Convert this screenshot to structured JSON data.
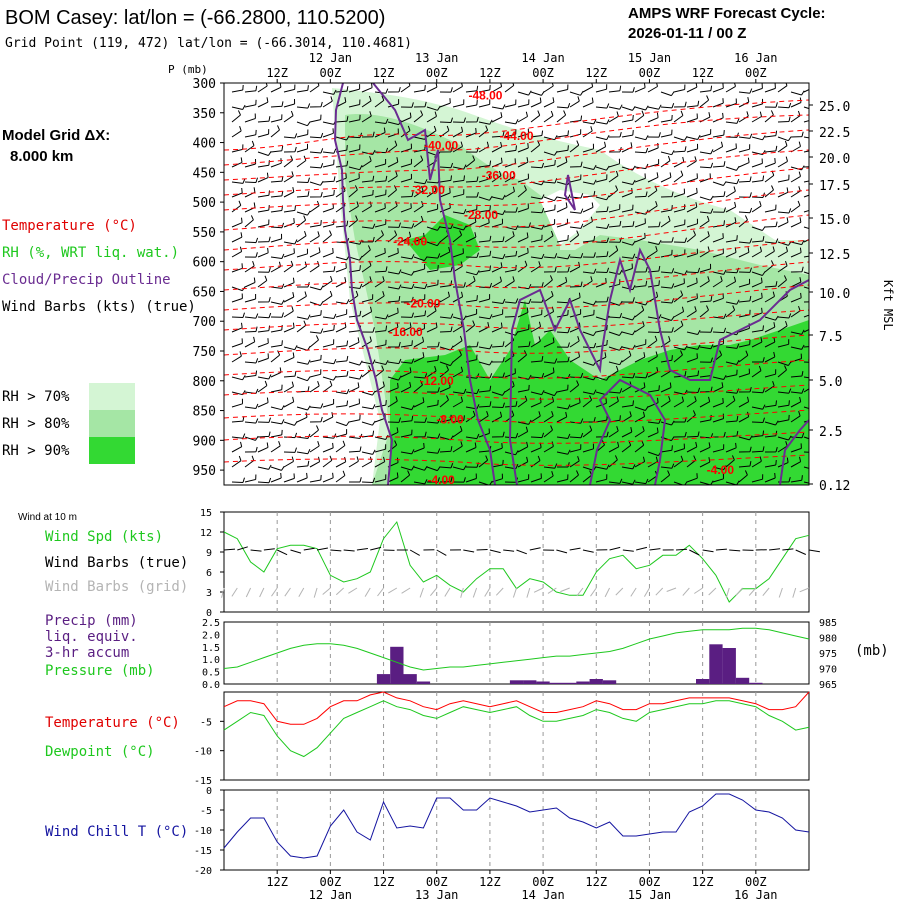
{
  "header": {
    "title": "BOM Casey:  lat/lon = (-66.2800, 110.5200)",
    "subtitle": "Grid Point (119, 472) lat/lon = (-66.3014, 110.4681)",
    "cycle_label": "AMPS WRF Forecast Cycle:",
    "cycle_value": "2026-01-11 / 00  Z"
  },
  "legend": {
    "grid_label": "Model Grid ΔX:",
    "grid_value": "8.000 km",
    "temperature": "Temperature (°C)",
    "rh": "RH (%, WRT liq. wat.)",
    "cloud": "Cloud/Precip Outline",
    "wind_barbs": "Wind Barbs (kts) (true)",
    "rh70": "RH > 70%",
    "rh80": "RH > 80%",
    "rh90": "RH > 90%",
    "wind10m": "Wind at 10 m",
    "wind_spd": "Wind Spd (kts)",
    "wind_barbs_true": "Wind Barbs (true)",
    "wind_barbs_grid": "Wind Barbs (grid)",
    "precip": "Precip (mm)",
    "precip2": "liq. equiv.",
    "precip3": "3-hr accum",
    "pressure": "Pressure (mb)",
    "temp2": "Temperature (°C)",
    "dewpoint": "Dewpoint (°C)",
    "windchill": "Wind Chill T (°C)",
    "mb_unit": "(mb)",
    "kft": "Kft MSL",
    "p_axis_label": "P (mb)"
  },
  "colors": {
    "temp": "#ff0000",
    "rh": "#1ec81e",
    "cloud": "#6a2c91",
    "rh70": "#d4f5d4",
    "rh80": "#a5e6a5",
    "rh90": "#33d933",
    "dew": "#1ec81e",
    "windchill": "#1414a0",
    "precip": "#5a1e82",
    "grid_barb": "#b4b4b4"
  },
  "chart_data": [
    {
      "type": "time-height cross-section",
      "x_hours": [
        0,
        132
      ],
      "time_ticks": [
        "12Z",
        "00Z",
        "12Z",
        "00Z",
        "12Z",
        "00Z",
        "12Z",
        "00Z",
        "12Z",
        "00Z"
      ],
      "tick_hours": [
        12,
        24,
        36,
        48,
        60,
        72,
        84,
        96,
        108,
        120
      ],
      "date_labels": [
        {
          "hour": 24,
          "label": "12 Jan"
        },
        {
          "hour": 48,
          "label": "13 Jan"
        },
        {
          "hour": 72,
          "label": "14 Jan"
        },
        {
          "hour": 96,
          "label": "15 Jan"
        },
        {
          "hour": 120,
          "label": "16 Jan"
        }
      ],
      "pressure_levels": [
        300,
        350,
        400,
        450,
        500,
        550,
        600,
        650,
        700,
        750,
        800,
        850,
        900,
        950
      ],
      "height_kft": [
        "25.0",
        "22.5",
        "20.0",
        "17.5",
        "15.0",
        "12.5",
        "10.0",
        "7.5",
        "5.0",
        "2.5",
        "0.12"
      ],
      "temperature_contours": [
        {
          "label": "-48.00",
          "hour": 59,
          "p": 321
        },
        {
          "label": "-44.00",
          "hour": 66,
          "p": 389
        },
        {
          "label": "-40.00",
          "hour": 49,
          "p": 405
        },
        {
          "label": "-36.00",
          "hour": 62,
          "p": 455
        },
        {
          "label": "-32.00",
          "hour": 46,
          "p": 480
        },
        {
          "label": "-28.00",
          "hour": 58,
          "p": 522
        },
        {
          "label": "-24.00",
          "hour": 42,
          "p": 566
        },
        {
          "label": "-20.00",
          "hour": 45,
          "p": 670
        },
        {
          "label": "-16.00",
          "hour": 41,
          "p": 718
        },
        {
          "label": "-12.00",
          "hour": 48,
          "p": 800
        },
        {
          "label": "-8.00",
          "hour": 51,
          "p": 865
        },
        {
          "label": "-4.00",
          "hour": 49,
          "p": 967
        },
        {
          "label": "-4.00",
          "hour": 112,
          "p": 950
        }
      ]
    },
    {
      "type": "line",
      "title": "Wind at 10 m",
      "x_hours": [
        0,
        3,
        6,
        9,
        12,
        15,
        18,
        21,
        24,
        27,
        30,
        33,
        36,
        39,
        42,
        45,
        48,
        51,
        54,
        57,
        60,
        63,
        66,
        69,
        72,
        75,
        78,
        81,
        84,
        87,
        90,
        93,
        96,
        99,
        102,
        105,
        108,
        111,
        114,
        117,
        120,
        123,
        126,
        129,
        132
      ],
      "series": [
        {
          "name": "Wind Spd (kts)",
          "values": [
            12,
            11,
            7.5,
            6,
            9.5,
            10,
            10,
            9.5,
            5.5,
            4.5,
            5,
            6,
            11,
            13.5,
            7,
            4.5,
            5.5,
            4,
            3,
            5,
            6.5,
            6.5,
            3.5,
            5,
            4.5,
            3,
            2.5,
            2.5,
            6,
            8,
            8.5,
            6.5,
            7,
            8.5,
            8.5,
            10,
            8,
            5.5,
            1.5,
            3.5,
            3.5,
            5,
            8,
            11,
            11.5
          ]
        }
      ],
      "ylim": [
        0,
        15
      ],
      "yticks": [
        0,
        3,
        6,
        9,
        12,
        15
      ]
    },
    {
      "type": "bar+line",
      "series": [
        {
          "name": "Precip (mm)",
          "bars": [
            {
              "hour": 36,
              "value": 0.4
            },
            {
              "hour": 39,
              "value": 1.5
            },
            {
              "hour": 42,
              "value": 0.4
            },
            {
              "hour": 45,
              "value": 0.1
            },
            {
              "hour": 66,
              "value": 0.15
            },
            {
              "hour": 69,
              "value": 0.15
            },
            {
              "hour": 72,
              "value": 0.1
            },
            {
              "hour": 75,
              "value": 0.05
            },
            {
              "hour": 78,
              "value": 0.05
            },
            {
              "hour": 81,
              "value": 0.1
            },
            {
              "hour": 84,
              "value": 0.2
            },
            {
              "hour": 87,
              "value": 0.15
            },
            {
              "hour": 108,
              "value": 0.2
            },
            {
              "hour": 111,
              "value": 1.6
            },
            {
              "hour": 114,
              "value": 1.45
            },
            {
              "hour": 117,
              "value": 0.25
            },
            {
              "hour": 120,
              "value": 0.05
            }
          ]
        },
        {
          "name": "Pressure (mb)",
          "values": [
            970,
            970.5,
            972,
            973.5,
            975,
            976.5,
            977.5,
            978,
            978,
            977.5,
            976.5,
            975,
            973.5,
            972,
            970.5,
            969.5,
            970,
            970.5,
            970.5,
            971,
            971.5,
            972,
            972.5,
            973,
            973.5,
            974,
            974,
            974.5,
            975,
            975.5,
            976.5,
            978,
            979.5,
            980.5,
            981.5,
            982,
            982.5,
            982.5,
            982.5,
            983,
            983,
            982.5,
            981.5,
            980.5,
            979.5
          ]
        }
      ],
      "precip_ylim": [
        0,
        2.5
      ],
      "precip_yticks": [
        "0.0",
        "0.5",
        "1.0",
        "1.5",
        "2.0",
        "2.5"
      ],
      "pressure_ylim": [
        965,
        985
      ],
      "pressure_yticks": [
        "965",
        "970",
        "975",
        "980",
        "985"
      ]
    },
    {
      "type": "line",
      "series": [
        {
          "name": "Temperature (°C)",
          "values": [
            -2.5,
            -1.5,
            -1.5,
            -2,
            -5,
            -5.5,
            -5.5,
            -4.5,
            -2.5,
            -1.5,
            -1.5,
            -0.5,
            0,
            -1,
            -1.5,
            -2.5,
            -3,
            -2,
            -1.5,
            -2,
            -2.5,
            -2,
            -1.5,
            -2.5,
            -3.5,
            -3.5,
            -3,
            -2.5,
            -1.5,
            -2,
            -3,
            -3,
            -2,
            -2,
            -1.5,
            -1,
            -1,
            -1,
            -1,
            -1.5,
            -2,
            -3,
            -3,
            -2.5,
            0
          ]
        },
        {
          "name": "Dewpoint (°C)",
          "values": [
            -6.5,
            -5,
            -3.5,
            -4,
            -7.5,
            -10,
            -11,
            -9.5,
            -7,
            -4.5,
            -3.5,
            -2.5,
            -1.5,
            -2.5,
            -3,
            -4,
            -4.5,
            -3.5,
            -2.5,
            -3,
            -3.5,
            -3,
            -2.5,
            -4,
            -5,
            -5,
            -4.5,
            -4,
            -3,
            -3.5,
            -4.5,
            -5,
            -3.5,
            -3,
            -2.5,
            -2,
            -2,
            -1.5,
            -1.5,
            -2,
            -2.5,
            -4,
            -5,
            -6.5,
            -6
          ]
        }
      ],
      "ylim": [
        -15,
        0
      ],
      "yticks": [
        -15,
        -10,
        -5
      ]
    },
    {
      "type": "line",
      "series": [
        {
          "name": "Wind Chill T (°C)",
          "values": [
            -14.5,
            -10.5,
            -7,
            -7,
            -13,
            -16.5,
            -17,
            -16.5,
            -9,
            -5,
            -10.5,
            -12.5,
            -3,
            -9.5,
            -9,
            -9.5,
            -2,
            -2,
            -5,
            -5,
            -2,
            -3,
            -4,
            -5.5,
            -5,
            -4.5,
            -7,
            -8,
            -9.5,
            -8,
            -11.5,
            -11.5,
            -11,
            -10.5,
            -10.5,
            -5.5,
            -4,
            -1,
            -1,
            -2.5,
            -5,
            -5.5,
            -7,
            -10,
            -10.5
          ]
        }
      ],
      "ylim": [
        -20,
        0
      ],
      "yticks": [
        -20,
        -15,
        -10,
        -5,
        0
      ]
    }
  ]
}
